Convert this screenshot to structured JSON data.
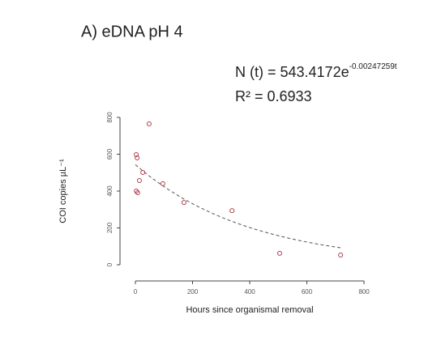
{
  "chart_data": {
    "type": "scatter",
    "title": "A) eDNA pH 4",
    "equation": {
      "base": "N (t) = 543.4172e",
      "exponent": "-0.00247259t"
    },
    "r_squared": "R² = 0.6933",
    "x_label": "Hours since organismal removal",
    "y_label": "COI copies µL⁻¹",
    "x": [
      3,
      6,
      48,
      26,
      14,
      3,
      8,
      96,
      170,
      338,
      505,
      718
    ],
    "values": [
      598,
      580,
      765,
      501,
      457,
      400,
      391,
      440,
      338,
      294,
      62,
      53
    ],
    "color": "#b03a48",
    "fit": {
      "coefficient": 543.4172,
      "rate": -0.00247259,
      "xrange": [
        0,
        720
      ],
      "color": "#555555"
    },
    "xlim": [
      0,
      800
    ],
    "xticks": [
      0,
      200,
      400,
      600,
      800
    ],
    "ylim": [
      0,
      800
    ],
    "yticks": [
      0,
      200,
      400,
      600,
      800
    ],
    "grid": false
  }
}
